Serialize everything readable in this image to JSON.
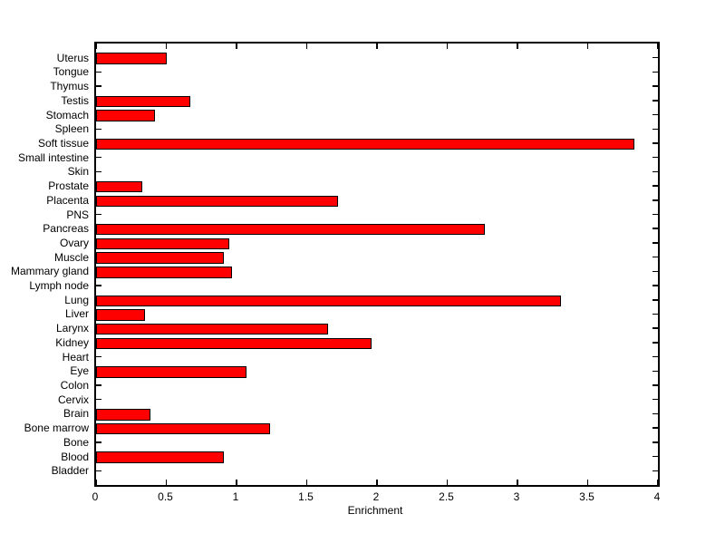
{
  "chart_data": {
    "type": "bar",
    "orientation": "horizontal",
    "title": "",
    "xlabel": "Enrichment",
    "ylabel": "",
    "xlim": [
      0,
      4
    ],
    "xticks": [
      0,
      0.5,
      1,
      1.5,
      2,
      2.5,
      3,
      3.5,
      4
    ],
    "xtick_labels": [
      "0",
      "0.5",
      "1",
      "1.5",
      "2",
      "2.5",
      "3",
      "3.5",
      "4"
    ],
    "categories": [
      "Uterus",
      "Tongue",
      "Thymus",
      "Testis",
      "Stomach",
      "Spleen",
      "Soft tissue",
      "Small intestine",
      "Skin",
      "Prostate",
      "Placenta",
      "PNS",
      "Pancreas",
      "Ovary",
      "Muscle",
      "Mammary gland",
      "Lymph node",
      "Lung",
      "Liver",
      "Larynx",
      "Kidney",
      "Heart",
      "Eye",
      "Colon",
      "Cervix",
      "Brain",
      "Bone marrow",
      "Bone",
      "Blood",
      "Bladder"
    ],
    "values": [
      0.5,
      0,
      0,
      0.67,
      0.42,
      0,
      3.83,
      0,
      0,
      0.33,
      1.72,
      0,
      2.77,
      0.95,
      0.91,
      0.97,
      0,
      3.31,
      0.35,
      1.65,
      1.96,
      0,
      1.07,
      0,
      0,
      0.39,
      1.24,
      0,
      0.91,
      0
    ],
    "bar_color": "#ff0000",
    "bar_border_color": "#000000",
    "axis_color": "#000000",
    "background_color": "#ffffff",
    "grid": false,
    "legend": null,
    "tick_direction": "in"
  }
}
